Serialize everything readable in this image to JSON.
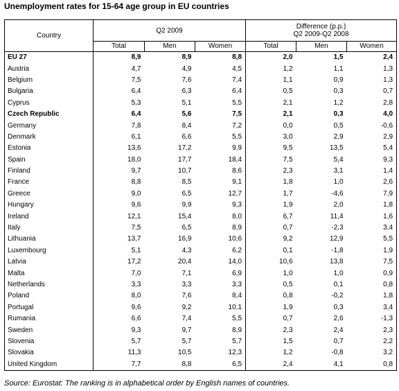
{
  "title": "Unemployment rates for 15-64 age group in EU countries",
  "headers": {
    "country": "Country",
    "group1": "Q2 2009",
    "group2_line1": "Difference (p.p.)",
    "group2_line2": "Q2 2009-Q2 2008",
    "sub": [
      "Total",
      "Men",
      "Women",
      "Total",
      "Men",
      "Women"
    ]
  },
  "rows": [
    {
      "country": "EU 27",
      "bold": true,
      "v": [
        "8,9",
        "8,9",
        "8,8",
        "2,0",
        "1,5",
        "2,4"
      ]
    },
    {
      "country": "Austria",
      "v": [
        "4,7",
        "4,9",
        "4,5",
        "1,2",
        "1,1",
        "1,3"
      ]
    },
    {
      "country": "Belgium",
      "v": [
        "7,5",
        "7,6",
        "7,4",
        "1,1",
        "0,9",
        "1,3"
      ]
    },
    {
      "country": "Bulgaria",
      "v": [
        "6,4",
        "6,3",
        "6,4",
        "0,5",
        "0,3",
        "0,7"
      ]
    },
    {
      "country": "Cyprus",
      "v": [
        "5,3",
        "5,1",
        "5,5",
        "2,1",
        "1,2",
        "2,8"
      ]
    },
    {
      "country": "Czech Republic",
      "bold": true,
      "v": [
        "6,4",
        "5,6",
        "7,5",
        "2,1",
        "0,3",
        "4,0"
      ]
    },
    {
      "country": "Germany",
      "v": [
        "7,8",
        "8,4",
        "7,2",
        "0,0",
        "0,5",
        "-0,6"
      ]
    },
    {
      "country": "Denmark",
      "v": [
        "6,1",
        "6,6",
        "5,5",
        "3,0",
        "2,9",
        "2,9"
      ]
    },
    {
      "country": "Estonia",
      "v": [
        "13,6",
        "17,2",
        "9,9",
        "9,5",
        "13,5",
        "5,4"
      ]
    },
    {
      "country": "Spain",
      "v": [
        "18,0",
        "17,7",
        "18,4",
        "7,5",
        "5,4",
        "9,3"
      ]
    },
    {
      "country": "Finland",
      "v": [
        "9,7",
        "10,7",
        "8,6",
        "2,3",
        "3,1",
        "1,4"
      ]
    },
    {
      "country": "France",
      "v": [
        "8,8",
        "8,5",
        "9,1",
        "1,8",
        "1,0",
        "2,6"
      ]
    },
    {
      "country": "Greece",
      "v": [
        "9,0",
        "6,5",
        "12,7",
        "1,7",
        "-4,6",
        "7,9"
      ]
    },
    {
      "country": "Hungary",
      "v": [
        "9,6",
        "9,9",
        "9,3",
        "1,9",
        "2,0",
        "1,8"
      ]
    },
    {
      "country": "Ireland",
      "v": [
        "12,1",
        "15,4",
        "8,0",
        "6,7",
        "11,4",
        "1,6"
      ]
    },
    {
      "country": "Italy",
      "v": [
        "7,5",
        "6,5",
        "8,9",
        "0,7",
        "-2,3",
        "3,4"
      ]
    },
    {
      "country": "Lithuania",
      "v": [
        "13,7",
        "16,9",
        "10,6",
        "9,2",
        "12,9",
        "5,5"
      ]
    },
    {
      "country": "Luxembourg",
      "v": [
        "5,1",
        "4,3",
        "6,2",
        "0,1",
        "-1,8",
        "1,9"
      ]
    },
    {
      "country": "Latvia",
      "v": [
        "17,2",
        "20,4",
        "14,0",
        "10,6",
        "13,8",
        "7,5"
      ]
    },
    {
      "country": "Malta",
      "v": [
        "7,0",
        "7,1",
        "6,9",
        "1,0",
        "1,0",
        "0,9"
      ]
    },
    {
      "country": "Netherlands",
      "v": [
        "3,3",
        "3,3",
        "3,3",
        "0,5",
        "0,1",
        "0,8"
      ]
    },
    {
      "country": "Poland",
      "v": [
        "8,0",
        "7,6",
        "8,4",
        "0,8",
        "-0,2",
        "1,8"
      ]
    },
    {
      "country": "Portugal",
      "v": [
        "9,6",
        "9,2",
        "10,1",
        "1,9",
        "0,3",
        "3,4"
      ]
    },
    {
      "country": "Rumania",
      "v": [
        "6,6",
        "7,4",
        "5,5",
        "0,7",
        "2,6",
        "-1,3"
      ]
    },
    {
      "country": "Sweden",
      "v": [
        "9,3",
        "9,7",
        "8,9",
        "2,3",
        "2,4",
        "2,3"
      ]
    },
    {
      "country": "Slovenia",
      "v": [
        "5,7",
        "5,7",
        "5,7",
        "1,5",
        "0,7",
        "2,2"
      ]
    },
    {
      "country": "Slovakia",
      "v": [
        "11,3",
        "10,5",
        "12,3",
        "1,2",
        "-0,8",
        "3,2"
      ]
    },
    {
      "country": "United Kingdom",
      "v": [
        "7,7",
        "8,8",
        "6,5",
        "2,4",
        "4,1",
        "0,8"
      ]
    }
  ],
  "source": "Source: Eurostat: The ranking is in alphabetical order by English names of countries."
}
